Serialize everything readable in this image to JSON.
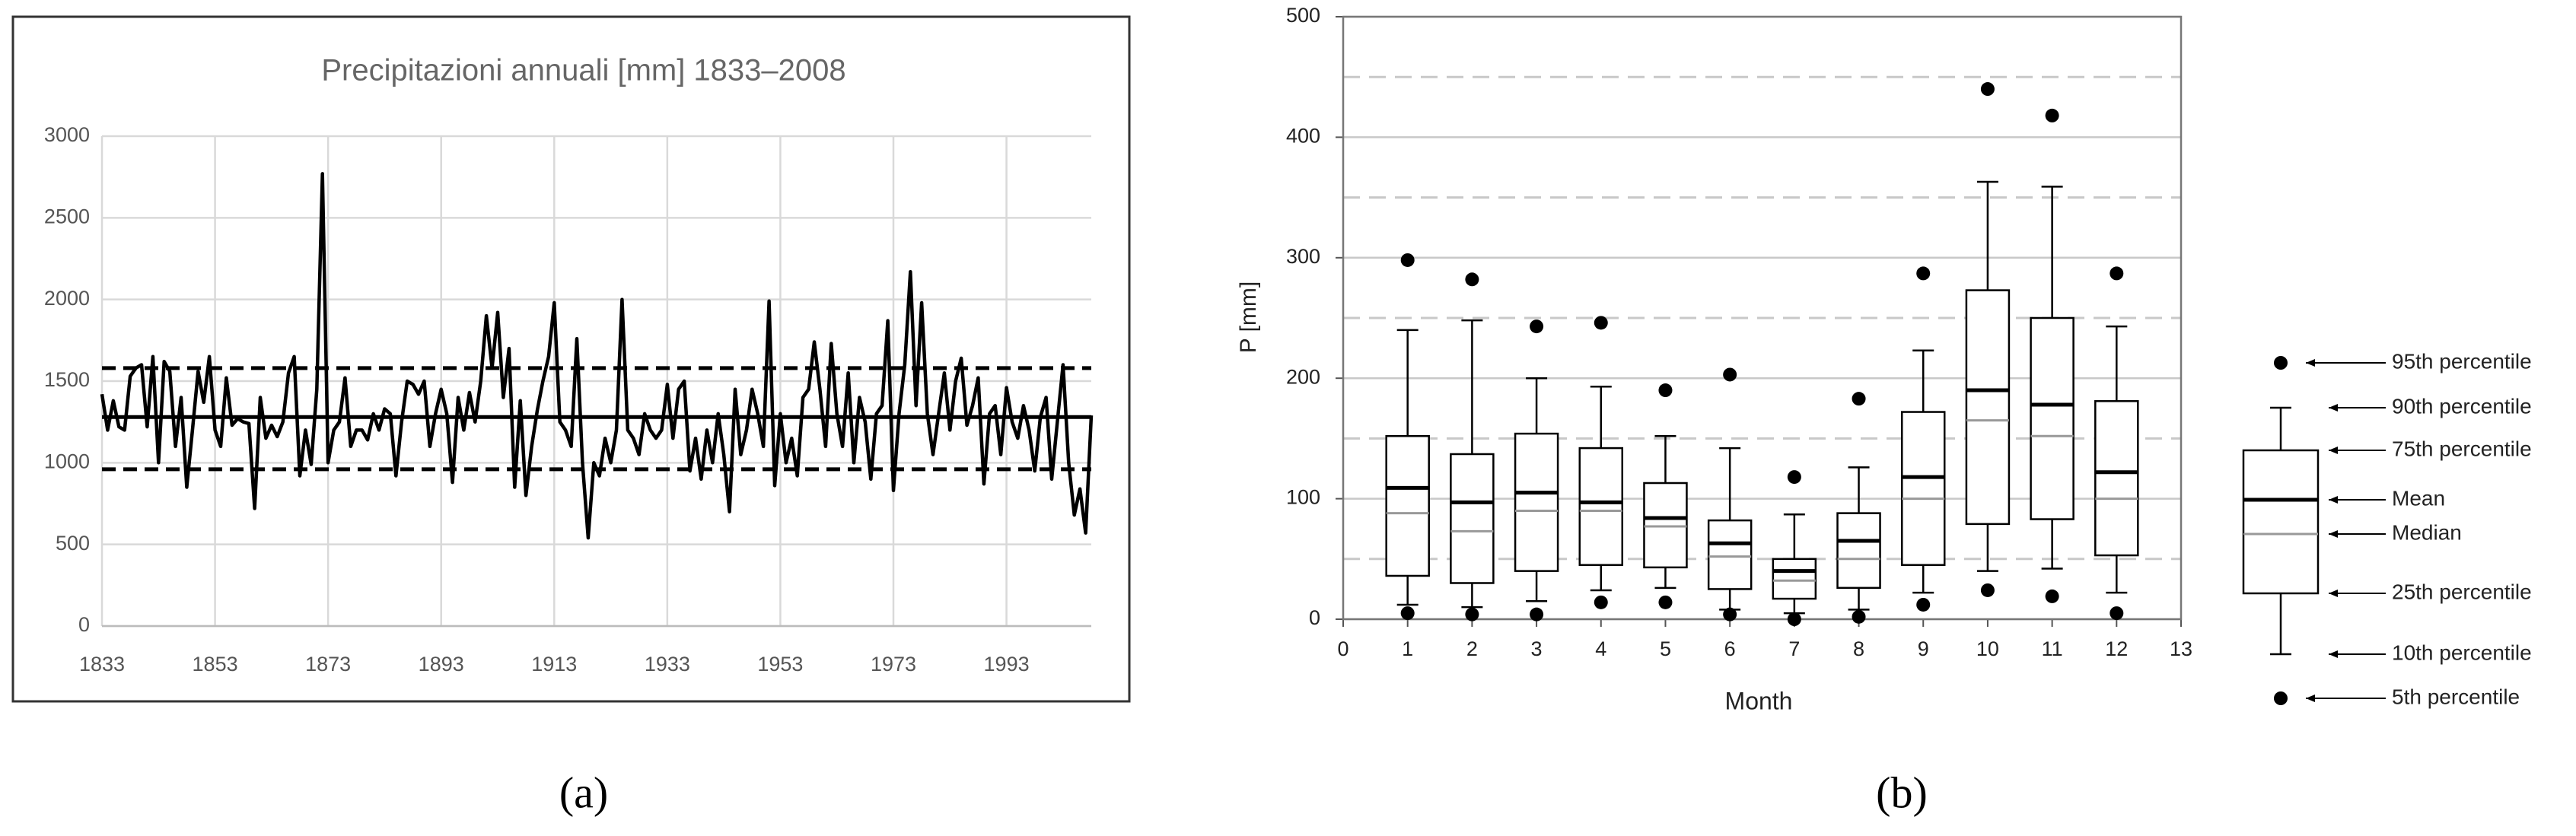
{
  "chart_data": [
    {
      "type": "line",
      "title": "Precipitazioni annuali [mm] 1833–2008",
      "panel_label": "(a)",
      "color": "#000000",
      "x": [
        1833,
        1834,
        1835,
        1836,
        1837,
        1838,
        1839,
        1840,
        1841,
        1842,
        1843,
        1844,
        1845,
        1846,
        1847,
        1848,
        1849,
        1850,
        1851,
        1852,
        1853,
        1854,
        1855,
        1856,
        1857,
        1858,
        1859,
        1860,
        1861,
        1862,
        1863,
        1864,
        1865,
        1866,
        1867,
        1868,
        1869,
        1870,
        1871,
        1872,
        1873,
        1874,
        1875,
        1876,
        1877,
        1878,
        1879,
        1880,
        1881,
        1882,
        1883,
        1884,
        1885,
        1886,
        1887,
        1888,
        1889,
        1890,
        1891,
        1892,
        1893,
        1894,
        1895,
        1896,
        1897,
        1898,
        1899,
        1900,
        1901,
        1902,
        1903,
        1904,
        1905,
        1906,
        1907,
        1908,
        1909,
        1910,
        1911,
        1912,
        1913,
        1914,
        1915,
        1916,
        1917,
        1918,
        1919,
        1920,
        1921,
        1922,
        1923,
        1924,
        1925,
        1926,
        1927,
        1928,
        1929,
        1930,
        1931,
        1932,
        1933,
        1934,
        1935,
        1936,
        1937,
        1938,
        1939,
        1940,
        1941,
        1942,
        1943,
        1944,
        1945,
        1946,
        1947,
        1948,
        1949,
        1950,
        1951,
        1952,
        1953,
        1954,
        1955,
        1956,
        1957,
        1958,
        1959,
        1960,
        1961,
        1962,
        1963,
        1964,
        1965,
        1966,
        1967,
        1968,
        1969,
        1970,
        1971,
        1972,
        1973,
        1974,
        1975,
        1976,
        1977,
        1978,
        1979,
        1980,
        1981,
        1982,
        1983,
        1984,
        1985,
        1986,
        1987,
        1988,
        1989,
        1990,
        1991,
        1992,
        1993,
        1994,
        1995,
        1996,
        1997,
        1998,
        1999,
        2000,
        2001,
        2002,
        2003,
        2004,
        2005,
        2006,
        2007,
        2008
      ],
      "values": [
        1420,
        1200,
        1380,
        1220,
        1200,
        1530,
        1580,
        1600,
        1220,
        1650,
        1000,
        1620,
        1560,
        1100,
        1400,
        850,
        1200,
        1560,
        1370,
        1650,
        1200,
        1100,
        1520,
        1230,
        1270,
        1250,
        1240,
        720,
        1400,
        1150,
        1230,
        1160,
        1250,
        1550,
        1650,
        920,
        1200,
        990,
        1450,
        2770,
        1000,
        1200,
        1250,
        1520,
        1100,
        1200,
        1200,
        1140,
        1300,
        1200,
        1330,
        1300,
        920,
        1250,
        1500,
        1480,
        1420,
        1500,
        1100,
        1300,
        1450,
        1300,
        880,
        1400,
        1200,
        1430,
        1250,
        1500,
        1900,
        1580,
        1920,
        1400,
        1700,
        850,
        1380,
        800,
        1100,
        1320,
        1500,
        1650,
        1980,
        1250,
        1200,
        1100,
        1760,
        1000,
        540,
        1000,
        920,
        1150,
        1000,
        1200,
        2000,
        1200,
        1150,
        1050,
        1300,
        1200,
        1150,
        1200,
        1480,
        1150,
        1450,
        1500,
        950,
        1150,
        900,
        1200,
        1000,
        1300,
        1050,
        700,
        1450,
        1050,
        1200,
        1450,
        1300,
        1100,
        1990,
        860,
        1300,
        1000,
        1150,
        920,
        1400,
        1450,
        1740,
        1450,
        1100,
        1730,
        1300,
        1100,
        1550,
        1000,
        1400,
        1250,
        900,
        1300,
        1350,
        1870,
        830,
        1300,
        1600,
        2170,
        1350,
        1980,
        1300,
        1050,
        1300,
        1550,
        1200,
        1500,
        1640,
        1230,
        1350,
        1520,
        870,
        1300,
        1350,
        1050,
        1460,
        1250,
        1150,
        1350,
        1200,
        950,
        1280,
        1400,
        900,
        1250,
        1600,
        1000,
        680,
        840,
        570,
        1290
      ],
      "hlines": [
        {
          "value": 1580,
          "dashed": true
        },
        {
          "value": 1280,
          "dashed": false
        },
        {
          "value": 960,
          "dashed": true
        }
      ],
      "xlim": [
        1833,
        2008
      ],
      "xticks": [
        1833,
        1853,
        1873,
        1893,
        1913,
        1933,
        1953,
        1973,
        1993
      ],
      "ylim": [
        0,
        3000
      ],
      "yticks": [
        0,
        500,
        1000,
        1500,
        2000,
        2500,
        3000
      ],
      "xgrid": true,
      "ygrid": true,
      "frame": false
    },
    {
      "type": "box",
      "panel_label": "(b)",
      "xlabel": "Month",
      "ylabel": "P [mm]",
      "x": [
        1,
        2,
        3,
        4,
        5,
        6,
        7,
        8,
        9,
        10,
        11,
        12
      ],
      "series": [
        {
          "name": "95th percentile",
          "color": "#000000",
          "values": [
            298,
            282,
            243,
            246,
            190,
            203,
            118,
            183,
            287,
            440,
            418,
            287
          ]
        },
        {
          "name": "90th percentile",
          "color": "#000000",
          "values": [
            240,
            248,
            200,
            193,
            152,
            142,
            87,
            126,
            223,
            363,
            359,
            243
          ]
        },
        {
          "name": "75th percentile",
          "color": "#000000",
          "values": [
            152,
            137,
            154,
            142,
            113,
            82,
            50,
            88,
            172,
            273,
            250,
            181
          ]
        },
        {
          "name": "Mean",
          "color": "#000000",
          "values": [
            109,
            97,
            105,
            97,
            84,
            63,
            40,
            65,
            118,
            190,
            178,
            122
          ]
        },
        {
          "name": "Median",
          "color": "#999999",
          "values": [
            88,
            73,
            90,
            90,
            77,
            52,
            32,
            50,
            100,
            165,
            152,
            100
          ]
        },
        {
          "name": "25th percentile",
          "color": "#000000",
          "values": [
            36,
            30,
            40,
            45,
            43,
            25,
            17,
            26,
            45,
            79,
            83,
            53
          ]
        },
        {
          "name": "10th percentile",
          "color": "#000000",
          "values": [
            12,
            10,
            15,
            24,
            26,
            8,
            5,
            8,
            22,
            40,
            42,
            22
          ]
        },
        {
          "name": "5th percentile",
          "color": "#000000",
          "values": [
            5,
            4,
            4,
            14,
            14,
            4,
            0,
            2,
            12,
            24,
            19,
            5
          ]
        }
      ],
      "xlim": [
        0,
        13
      ],
      "xticks": [
        0,
        1,
        2,
        3,
        4,
        5,
        6,
        7,
        8,
        9,
        10,
        11,
        12,
        13
      ],
      "ylim": [
        0,
        500
      ],
      "yticks": [
        0,
        100,
        200,
        300,
        400,
        500
      ],
      "minor_yticks": [
        50,
        150,
        250,
        350,
        450
      ],
      "xgrid": false,
      "ygrid": true,
      "frame": true
    }
  ]
}
